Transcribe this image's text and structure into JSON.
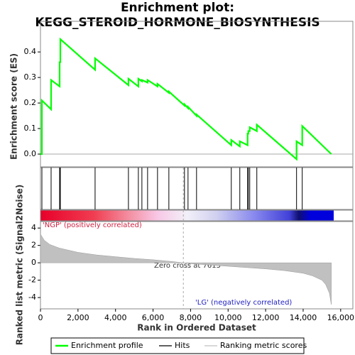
{
  "chart_data": [
    {
      "type": "line",
      "title": "Enrichment plot:",
      "subtitle": "KEGG_STEROID_HORMONE_BIOSYNTHESIS",
      "y_label": "Enrichment score (ES)",
      "ylim": [
        -0.05,
        0.52
      ],
      "yticks": [
        {
          "value": 0,
          "label": "0.0"
        },
        0.1,
        0.2,
        0.3,
        0.4
      ],
      "series": [
        {
          "name": "Enrichment profile",
          "color": "#00ff00",
          "x": [
            0,
            76,
            76,
            567,
            567,
            1021,
            1021,
            1059,
            1059,
            2911,
            2911,
            4688,
            4688,
            5217,
            5217,
            5406,
            5406,
            5709,
            5709,
            6238,
            6238,
            6843,
            6843,
            7675,
            7675,
            7864,
            7864,
            8318,
            8318,
            10170,
            10170,
            10624,
            10624,
            11040,
            11040,
            11078,
            11078,
            11153,
            11153,
            11531,
            11531,
            13648,
            13648,
            13951,
            13951,
            15500
          ],
          "values": [
            0,
            0,
            0.21,
            0.175,
            0.29,
            0.265,
            0.36,
            0.36,
            0.45,
            0.33,
            0.375,
            0.27,
            0.295,
            0.265,
            0.295,
            0.285,
            0.29,
            0.28,
            0.29,
            0.265,
            0.275,
            0.24,
            0.245,
            0.19,
            0.195,
            0.18,
            0.185,
            0.15,
            0.155,
            0.035,
            0.055,
            0.03,
            0.05,
            0.035,
            0.08,
            0.08,
            0.09,
            0.09,
            0.105,
            0.09,
            0.115,
            -0.02,
            0.05,
            0.035,
            0.11,
            0.0
          ]
        }
      ]
    },
    {
      "type": "rug",
      "series": [
        {
          "name": "Hits",
          "color": "#000000",
          "x": [
            76,
            567,
            1021,
            1059,
            2911,
            4688,
            5217,
            5406,
            5709,
            6238,
            6843,
            7675,
            7864,
            8318,
            10170,
            10624,
            11040,
            11078,
            11153,
            11531,
            13648,
            13951
          ]
        }
      ]
    },
    {
      "type": "area",
      "y_label": "Ranked list metric (Signal2Noise)",
      "x_label": "Rank in Ordered Dataset",
      "xlim": [
        0,
        16650
      ],
      "xticks": [
        0,
        {
          "value": 2000,
          "label": "2,000"
        },
        {
          "value": 4000,
          "label": "4,000"
        },
        {
          "value": 6000,
          "label": "6,000"
        },
        {
          "value": 8000,
          "label": "8,000"
        },
        {
          "value": 10000,
          "label": "10,000"
        },
        {
          "value": 12000,
          "label": "12,000"
        },
        {
          "value": 14000,
          "label": "14,000"
        },
        {
          "value": 16000,
          "label": "16,000"
        }
      ],
      "ylim": [
        -5.3,
        4.75
      ],
      "yticks": [
        4,
        2,
        0,
        -2,
        -4
      ],
      "zero_cross": 7615,
      "annotations": [
        "'NGP' (positively correlated)",
        "Zero cross at 7615",
        "'LG' (negatively correlated)"
      ],
      "series": [
        {
          "name": "Ranking metric scores",
          "color": "#c0c0c0",
          "x": [
            0,
            200,
            500,
            1000,
            2000,
            3000,
            4000,
            5000,
            6000,
            7000,
            7615,
            8000,
            9000,
            10000,
            11000,
            12000,
            13000,
            14000,
            14500,
            15000,
            15200,
            15400,
            15500
          ],
          "values": [
            3.3,
            2.6,
            2.1,
            1.7,
            1.2,
            0.9,
            0.7,
            0.5,
            0.35,
            0.15,
            0,
            -0.1,
            -0.25,
            -0.4,
            -0.55,
            -0.7,
            -0.9,
            -1.2,
            -1.5,
            -2.0,
            -2.5,
            -3.5,
            -4.8
          ]
        }
      ]
    }
  ]
}
